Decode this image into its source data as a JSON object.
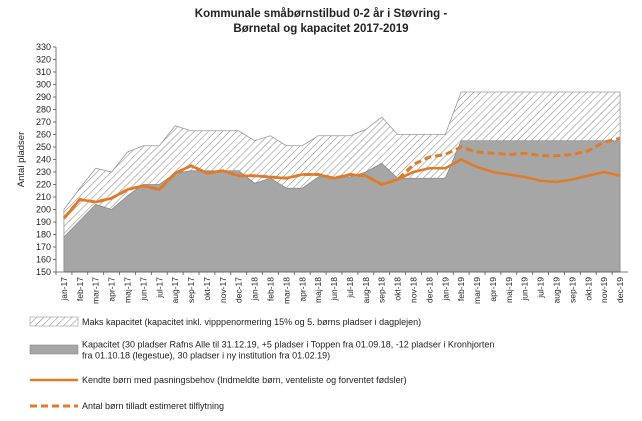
{
  "chart_data": {
    "type": "area",
    "title": "Kommunale småbørnstilbud  0-2 år i Støvring -",
    "subtitle": "Børnetal og kapacitet 2017-2019",
    "xlabel": "",
    "ylabel": "Antal pladser",
    "ylim": [
      150,
      330
    ],
    "yticks": [
      150,
      160,
      170,
      180,
      190,
      200,
      210,
      220,
      230,
      240,
      250,
      260,
      270,
      280,
      290,
      300,
      310,
      320,
      330
    ],
    "grid": false,
    "legend_position": "bottom",
    "categories": [
      "jan-17",
      "feb-17",
      "mar-17",
      "apr-17",
      "maj-17",
      "jun-17",
      "jul-17",
      "aug-17",
      "sep-17",
      "okt-17",
      "nov-17",
      "dec-17",
      "jan-18",
      "feb-18",
      "mar-18",
      "apr-18",
      "maj-18",
      "jun-18",
      "jul-18",
      "aug-18",
      "sep-18",
      "okt-18",
      "nov-18",
      "dec-18",
      "jan-19",
      "feb-19",
      "mar-19",
      "apr-19",
      "maj-19",
      "jun-19",
      "jul-19",
      "aug-19",
      "sep-19",
      "okt-19",
      "nov-19",
      "dec-19"
    ],
    "series": [
      {
        "name": "Maks kapacitet (kapacitet inkl. vipppenormering 15% og 5. børns pladser i dagplejen)",
        "style": "hatched-area",
        "values": [
          200,
          217,
          233,
          230,
          246,
          251,
          251,
          267,
          263,
          263,
          263,
          263,
          255,
          259,
          251,
          251,
          259,
          259,
          259,
          264,
          274,
          260,
          260,
          260,
          260,
          294,
          294,
          294,
          294,
          294,
          294,
          294,
          294,
          294,
          294,
          294
        ]
      },
      {
        "name": "Kapacitet (30 pladser Rafns Alle til 31.12.19, +5 pladser i Toppen fra 01.09.18, -12 pladser i Kronhjorten fra 01.10.18 (legestue), 30 pladser i ny institution fra 01.02.19)",
        "style": "gray-area",
        "values": [
          178,
          191,
          204,
          200,
          211,
          220,
          220,
          229,
          231,
          231,
          231,
          231,
          221,
          225,
          217,
          217,
          226,
          226,
          226,
          230,
          237,
          225,
          225,
          225,
          225,
          255,
          255,
          255,
          255,
          255,
          255,
          255,
          255,
          255,
          255,
          255
        ]
      },
      {
        "name": "Kendte børn med pasningsbehov (Indmeldte børn, venteliste og forventet fødsler)",
        "style": "solid-line",
        "values": [
          193,
          208,
          206,
          209,
          216,
          219,
          216,
          229,
          235,
          229,
          231,
          227,
          227,
          226,
          225,
          228,
          228,
          225,
          228,
          227,
          220,
          224,
          230,
          233,
          233,
          240,
          234,
          230,
          228,
          226,
          223,
          222,
          224,
          227,
          230,
          227
        ]
      },
      {
        "name": "Antal børn tilladt estimeret tilflytning",
        "style": "dashed-line",
        "values": [
          193,
          208,
          206,
          209,
          216,
          219,
          216,
          229,
          235,
          229,
          231,
          227,
          227,
          226,
          225,
          228,
          228,
          225,
          228,
          227,
          220,
          224,
          236,
          242,
          244,
          250,
          246,
          245,
          244,
          245,
          243,
          243,
          244,
          247,
          254,
          257
        ]
      }
    ]
  }
}
